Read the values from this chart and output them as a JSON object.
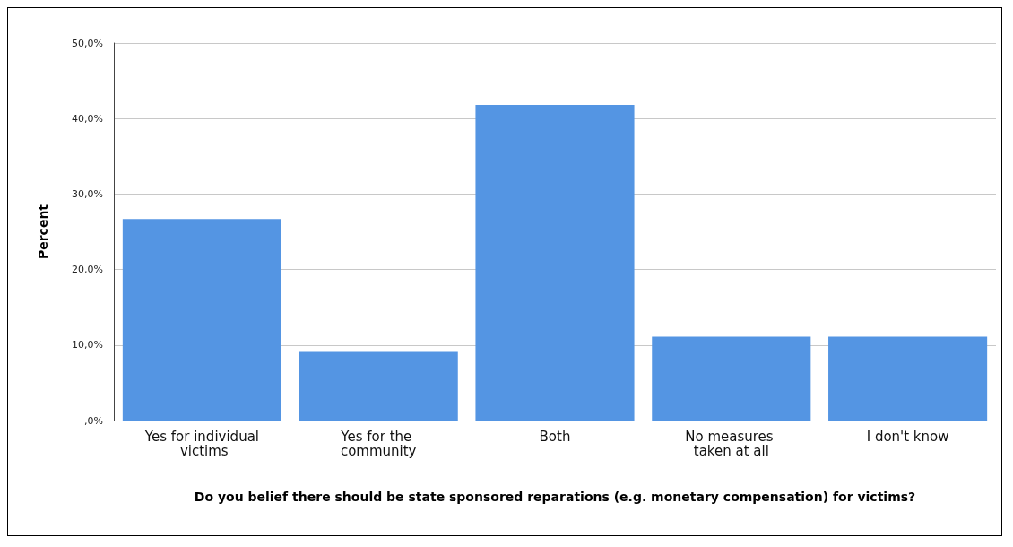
{
  "chart_data": {
    "type": "bar",
    "categories": [
      "Yes for individual victims",
      "Yes for the community",
      "Both",
      "No measures taken at all",
      "I don't know"
    ],
    "values": [
      26.7,
      9.2,
      41.8,
      11.1,
      11.1
    ],
    "color": "#5495e3",
    "ylim": [
      0,
      50
    ],
    "yticks": [
      {
        "value": 0,
        "label": ",0%"
      },
      {
        "value": 10,
        "label": "10,0%"
      },
      {
        "value": 20,
        "label": "20,0%"
      },
      {
        "value": 30,
        "label": "30,0%"
      },
      {
        "value": 40,
        "label": "40,0%"
      },
      {
        "value": 50,
        "label": "50,0%"
      }
    ],
    "ylabel": "Percent",
    "xlabel": "Do you belief there should be state sponsored reparations (e.g. monetary compensation) for victims?",
    "grid": "y"
  }
}
